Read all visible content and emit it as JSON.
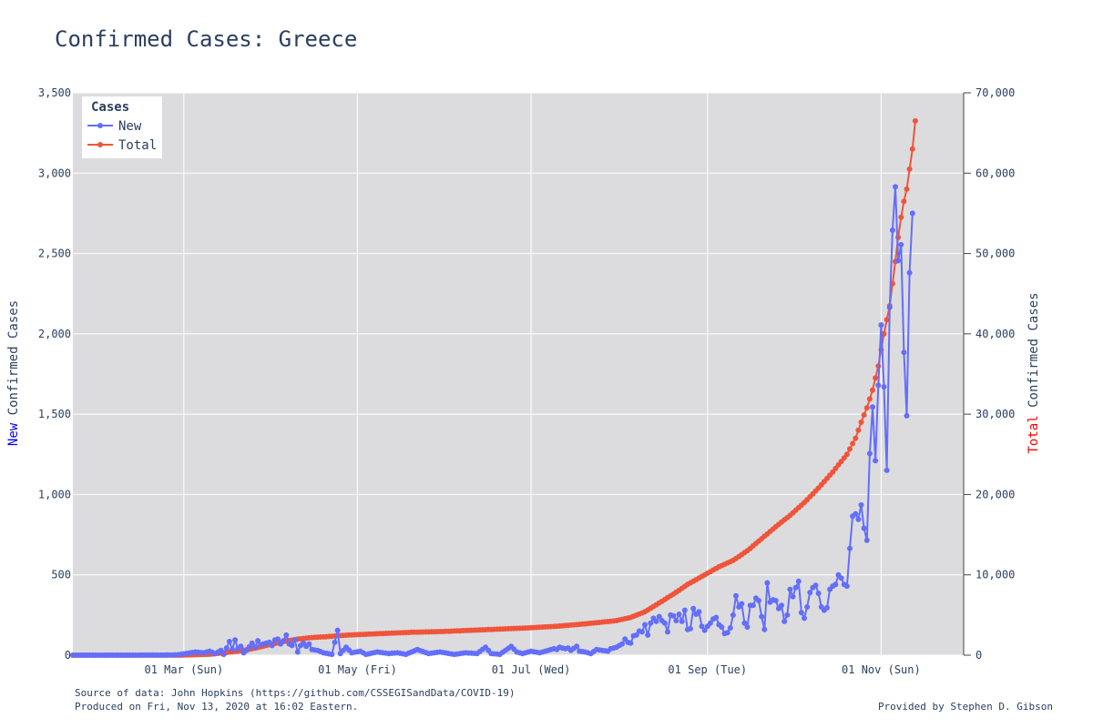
{
  "chart_data": {
    "type": "line",
    "title": "Confirmed Cases: Greece",
    "y_left": {
      "label_colored": "New",
      "label_rest": " Confirmed Cases",
      "range": [
        0,
        3500
      ],
      "ticks": [
        0,
        500,
        1000,
        1500,
        2000,
        2500,
        3000,
        3500
      ],
      "tick_labels": [
        "0",
        "500",
        "1,000",
        "1,500",
        "2,000",
        "2,500",
        "3,000",
        "3,500"
      ]
    },
    "y_right": {
      "label_colored": "Total",
      "label_rest": " Confirmed Cases",
      "range": [
        0,
        70000
      ],
      "ticks": [
        0,
        10000,
        20000,
        30000,
        40000,
        50000,
        60000,
        70000
      ],
      "tick_labels": [
        "0",
        "10,000",
        "20,000",
        "30,000",
        "40,000",
        "50,000",
        "60,000",
        "70,000"
      ]
    },
    "x": {
      "range": [
        "2020-01-22",
        "2020-11-30"
      ],
      "ticks": [
        "2020-03-01",
        "2020-05-01",
        "2020-07-01",
        "2020-09-01",
        "2020-11-01"
      ],
      "tick_labels": [
        "01 Mar (Sun)",
        "01 May (Fri)",
        "01 Jul (Wed)",
        "01 Sep (Tue)",
        "01 Nov (Sun)"
      ]
    },
    "grid": true,
    "legend": {
      "title": "Cases",
      "position": "top-left",
      "entries": [
        "New",
        "Total"
      ]
    },
    "colors": {
      "new": "#636efa",
      "total": "#ef553b",
      "new_label": "#0000ff",
      "total_label": "#ff0000",
      "plot_bg": "#dcdcdf",
      "grid": "#ffffff"
    },
    "series": [
      {
        "name": "New",
        "axis": "left",
        "points": [
          [
            "2020-01-22",
            0
          ],
          [
            "2020-02-10",
            0
          ],
          [
            "2020-02-26",
            1
          ],
          [
            "2020-02-28",
            3
          ],
          [
            "2020-03-05",
            20
          ],
          [
            "2020-03-08",
            15
          ],
          [
            "2020-03-10",
            25
          ],
          [
            "2020-03-12",
            10
          ],
          [
            "2020-03-14",
            30
          ],
          [
            "2020-03-15",
            5
          ],
          [
            "2020-03-17",
            85
          ],
          [
            "2020-03-18",
            35
          ],
          [
            "2020-03-19",
            95
          ],
          [
            "2020-03-20",
            40
          ],
          [
            "2020-03-21",
            55
          ],
          [
            "2020-03-22",
            15
          ],
          [
            "2020-03-23",
            30
          ],
          [
            "2020-03-25",
            75
          ],
          [
            "2020-03-26",
            50
          ],
          [
            "2020-03-27",
            90
          ],
          [
            "2020-03-28",
            65
          ],
          [
            "2020-03-29",
            70
          ],
          [
            "2020-03-31",
            80
          ],
          [
            "2020-04-01",
            60
          ],
          [
            "2020-04-02",
            95
          ],
          [
            "2020-04-03",
            100
          ],
          [
            "2020-04-04",
            70
          ],
          [
            "2020-04-05",
            90
          ],
          [
            "2020-04-06",
            125
          ],
          [
            "2020-04-07",
            70
          ],
          [
            "2020-04-08",
            60
          ],
          [
            "2020-04-09",
            95
          ],
          [
            "2020-04-10",
            20
          ],
          [
            "2020-04-11",
            60
          ],
          [
            "2020-04-12",
            75
          ],
          [
            "2020-04-13",
            55
          ],
          [
            "2020-04-14",
            70
          ],
          [
            "2020-04-15",
            35
          ],
          [
            "2020-04-17",
            30
          ],
          [
            "2020-04-19",
            15
          ],
          [
            "2020-04-22",
            5
          ],
          [
            "2020-04-24",
            155
          ],
          [
            "2020-04-25",
            10
          ],
          [
            "2020-04-27",
            50
          ],
          [
            "2020-04-29",
            15
          ],
          [
            "2020-05-02",
            25
          ],
          [
            "2020-05-04",
            5
          ],
          [
            "2020-05-08",
            20
          ],
          [
            "2020-05-12",
            10
          ],
          [
            "2020-05-15",
            15
          ],
          [
            "2020-05-18",
            5
          ],
          [
            "2020-05-22",
            35
          ],
          [
            "2020-05-26",
            10
          ],
          [
            "2020-05-30",
            20
          ],
          [
            "2020-06-04",
            5
          ],
          [
            "2020-06-08",
            15
          ],
          [
            "2020-06-12",
            10
          ],
          [
            "2020-06-15",
            50
          ],
          [
            "2020-06-17",
            10
          ],
          [
            "2020-06-20",
            5
          ],
          [
            "2020-06-24",
            55
          ],
          [
            "2020-06-26",
            20
          ],
          [
            "2020-06-28",
            10
          ],
          [
            "2020-07-01",
            25
          ],
          [
            "2020-07-04",
            15
          ],
          [
            "2020-07-07",
            30
          ],
          [
            "2020-07-09",
            40
          ],
          [
            "2020-07-10",
            35
          ],
          [
            "2020-07-11",
            50
          ],
          [
            "2020-07-13",
            40
          ],
          [
            "2020-07-14",
            45
          ],
          [
            "2020-07-15",
            30
          ],
          [
            "2020-07-17",
            55
          ],
          [
            "2020-07-18",
            25
          ],
          [
            "2020-07-20",
            20
          ],
          [
            "2020-07-22",
            10
          ],
          [
            "2020-07-24",
            35
          ],
          [
            "2020-07-26",
            30
          ],
          [
            "2020-07-28",
            25
          ],
          [
            "2020-07-29",
            40
          ],
          [
            "2020-07-31",
            50
          ],
          [
            "2020-08-01",
            60
          ],
          [
            "2020-08-02",
            70
          ],
          [
            "2020-08-03",
            100
          ],
          [
            "2020-08-04",
            80
          ],
          [
            "2020-08-05",
            75
          ],
          [
            "2020-08-06",
            120
          ],
          [
            "2020-08-07",
            125
          ],
          [
            "2020-08-08",
            150
          ],
          [
            "2020-08-09",
            145
          ],
          [
            "2020-08-10",
            190
          ],
          [
            "2020-08-11",
            125
          ],
          [
            "2020-08-12",
            200
          ],
          [
            "2020-08-13",
            230
          ],
          [
            "2020-08-14",
            210
          ],
          [
            "2020-08-15",
            240
          ],
          [
            "2020-08-16",
            215
          ],
          [
            "2020-08-17",
            200
          ],
          [
            "2020-08-18",
            145
          ],
          [
            "2020-08-19",
            250
          ],
          [
            "2020-08-20",
            245
          ],
          [
            "2020-08-21",
            215
          ],
          [
            "2020-08-22",
            255
          ],
          [
            "2020-08-23",
            210
          ],
          [
            "2020-08-24",
            280
          ],
          [
            "2020-08-25",
            160
          ],
          [
            "2020-08-26",
            165
          ],
          [
            "2020-08-27",
            290
          ],
          [
            "2020-08-28",
            255
          ],
          [
            "2020-08-29",
            270
          ],
          [
            "2020-08-30",
            180
          ],
          [
            "2020-08-31",
            155
          ],
          [
            "2020-09-01",
            180
          ],
          [
            "2020-09-02",
            200
          ],
          [
            "2020-09-03",
            225
          ],
          [
            "2020-09-04",
            235
          ],
          [
            "2020-09-05",
            190
          ],
          [
            "2020-09-06",
            175
          ],
          [
            "2020-09-07",
            135
          ],
          [
            "2020-09-08",
            140
          ],
          [
            "2020-09-09",
            170
          ],
          [
            "2020-09-10",
            250
          ],
          [
            "2020-09-11",
            370
          ],
          [
            "2020-09-12",
            300
          ],
          [
            "2020-09-13",
            320
          ],
          [
            "2020-09-14",
            200
          ],
          [
            "2020-09-15",
            175
          ],
          [
            "2020-09-16",
            310
          ],
          [
            "2020-09-17",
            310
          ],
          [
            "2020-09-18",
            355
          ],
          [
            "2020-09-19",
            340
          ],
          [
            "2020-09-20",
            240
          ],
          [
            "2020-09-21",
            160
          ],
          [
            "2020-09-22",
            450
          ],
          [
            "2020-09-23",
            330
          ],
          [
            "2020-09-24",
            345
          ],
          [
            "2020-09-25",
            340
          ],
          [
            "2020-09-26",
            290
          ],
          [
            "2020-09-27",
            310
          ],
          [
            "2020-09-28",
            210
          ],
          [
            "2020-09-29",
            250
          ],
          [
            "2020-09-30",
            410
          ],
          [
            "2020-10-01",
            365
          ],
          [
            "2020-10-02",
            420
          ],
          [
            "2020-10-03",
            460
          ],
          [
            "2020-10-04",
            265
          ],
          [
            "2020-10-05",
            230
          ],
          [
            "2020-10-06",
            300
          ],
          [
            "2020-10-07",
            390
          ],
          [
            "2020-10-08",
            420
          ],
          [
            "2020-10-09",
            435
          ],
          [
            "2020-10-10",
            385
          ],
          [
            "2020-10-11",
            300
          ],
          [
            "2020-10-12",
            280
          ],
          [
            "2020-10-13",
            295
          ],
          [
            "2020-10-14",
            410
          ],
          [
            "2020-10-15",
            430
          ],
          [
            "2020-10-16",
            440
          ],
          [
            "2020-10-17",
            500
          ],
          [
            "2020-10-18",
            480
          ],
          [
            "2020-10-19",
            440
          ],
          [
            "2020-10-20",
            430
          ],
          [
            "2020-10-21",
            665
          ],
          [
            "2020-10-22",
            865
          ],
          [
            "2020-10-23",
            880
          ],
          [
            "2020-10-24",
            845
          ],
          [
            "2020-10-25",
            935
          ],
          [
            "2020-10-26",
            790
          ],
          [
            "2020-10-27",
            715
          ],
          [
            "2020-10-28",
            1255
          ],
          [
            "2020-10-29",
            1545
          ],
          [
            "2020-10-30",
            1210
          ],
          [
            "2020-10-31",
            1680
          ],
          [
            "2020-11-01",
            2055
          ],
          [
            "2020-11-02",
            1670
          ],
          [
            "2020-11-03",
            1150
          ],
          [
            "2020-11-04",
            2165
          ],
          [
            "2020-11-05",
            2645
          ],
          [
            "2020-11-06",
            2915
          ],
          [
            "2020-11-07",
            2455
          ],
          [
            "2020-11-08",
            2555
          ],
          [
            "2020-11-09",
            1885
          ],
          [
            "2020-11-10",
            1490
          ],
          [
            "2020-11-11",
            2380
          ],
          [
            "2020-11-12",
            2750
          ]
        ]
      },
      {
        "name": "Total",
        "axis": "right",
        "points": [
          [
            "2020-01-22",
            0
          ],
          [
            "2020-02-25",
            0
          ],
          [
            "2020-03-01",
            7
          ],
          [
            "2020-03-05",
            60
          ],
          [
            "2020-03-10",
            110
          ],
          [
            "2020-03-15",
            300
          ],
          [
            "2020-03-20",
            500
          ],
          [
            "2020-03-25",
            800
          ],
          [
            "2020-03-31",
            1300
          ],
          [
            "2020-04-05",
            1700
          ],
          [
            "2020-04-10",
            2000
          ],
          [
            "2020-04-15",
            2200
          ],
          [
            "2020-04-20",
            2300
          ],
          [
            "2020-04-25",
            2450
          ],
          [
            "2020-04-30",
            2550
          ],
          [
            "2020-05-10",
            2700
          ],
          [
            "2020-05-20",
            2850
          ],
          [
            "2020-05-31",
            2950
          ],
          [
            "2020-06-10",
            3100
          ],
          [
            "2020-06-20",
            3250
          ],
          [
            "2020-06-30",
            3400
          ],
          [
            "2020-07-10",
            3600
          ],
          [
            "2020-07-20",
            3900
          ],
          [
            "2020-07-31",
            4300
          ],
          [
            "2020-08-05",
            4700
          ],
          [
            "2020-08-10",
            5400
          ],
          [
            "2020-08-15",
            6500
          ],
          [
            "2020-08-20",
            7600
          ],
          [
            "2020-08-25",
            8800
          ],
          [
            "2020-08-31",
            10000
          ],
          [
            "2020-09-05",
            11000
          ],
          [
            "2020-09-10",
            11800
          ],
          [
            "2020-09-15",
            13000
          ],
          [
            "2020-09-20",
            14500
          ],
          [
            "2020-09-25",
            16000
          ],
          [
            "2020-09-30",
            17400
          ],
          [
            "2020-10-05",
            19000
          ],
          [
            "2020-10-10",
            20800
          ],
          [
            "2020-10-15",
            22800
          ],
          [
            "2020-10-20",
            25000
          ],
          [
            "2020-10-23",
            27000
          ],
          [
            "2020-10-25",
            29000
          ],
          [
            "2020-10-27",
            30800
          ],
          [
            "2020-10-29",
            33000
          ],
          [
            "2020-10-31",
            36000
          ],
          [
            "2020-11-02",
            40000
          ],
          [
            "2020-11-04",
            43500
          ],
          [
            "2020-11-06",
            49000
          ],
          [
            "2020-11-07",
            52000
          ],
          [
            "2020-11-08",
            54500
          ],
          [
            "2020-11-09",
            56500
          ],
          [
            "2020-11-10",
            58000
          ],
          [
            "2020-11-11",
            60500
          ],
          [
            "2020-11-12",
            63000
          ],
          [
            "2020-11-13",
            66500
          ]
        ]
      }
    ]
  },
  "footer": {
    "source": "Source of data: John Hopkins (https://github.com/CSSEGISandData/COVID-19)",
    "produced": "Produced on Fri, Nov 13, 2020 at 16:02 Eastern.",
    "credit": "Provided by Stephen D. Gibson"
  }
}
